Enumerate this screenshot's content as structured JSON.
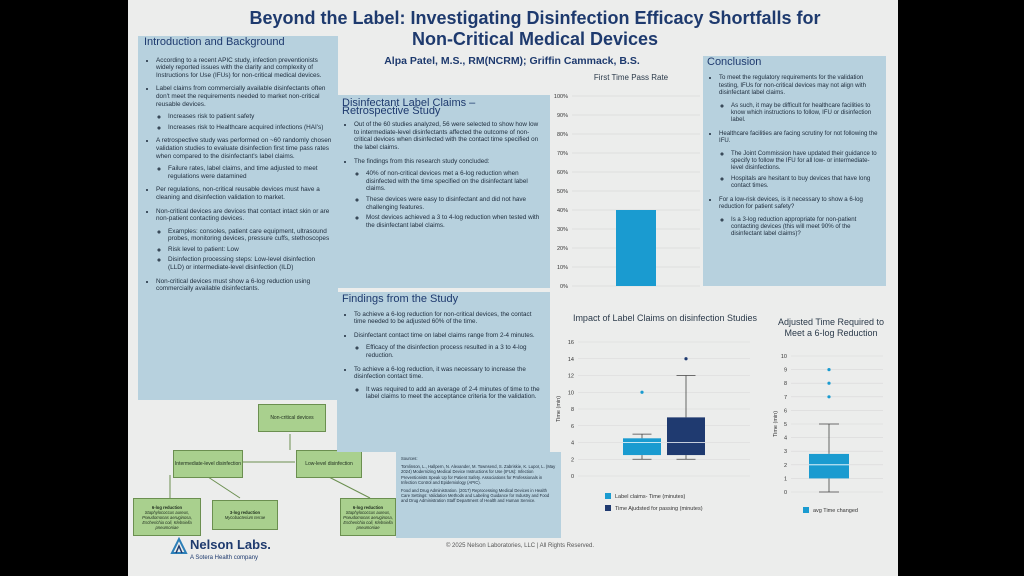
{
  "header": {
    "title_line1": "Beyond the Label: Investigating Disinfection Efficacy Shortfalls for",
    "title_line2": "Non-Critical Medical Devices",
    "authors": "Alpa Patel, M.S., RM(NCRM); Griffin Cammack, B.S."
  },
  "intro": {
    "heading": "Introduction and Background",
    "b1": "According to a recent APIC study, infection preventionists widely reported issues with the clarity and complexity of Instructions for Use (IFUs) for non-critical medical devices.",
    "b2": "Label claims from commercially available disinfectants often don't meet the requirements needed to market non-critical reusable devices.",
    "b2_s1": "Increases risk to patient safety",
    "b2_s2": "Increases risk to Healthcare acquired infections (HAI's)",
    "b3": "A retrospective study was performed on ~60 randomly chosen validation studies to evaluate disinfection first time pass rates when compared to the disinfectant's label claims.",
    "b3_s1": "Failure rates, label claims, and time adjusted to meet regulations were datamined",
    "b4": "Per regulations, non-critical reusable devices must have a cleaning and disinfection validation to market.",
    "b5": "Non-critical devices are devices that contact intact skin or are non-patient contacting devices.",
    "b5_s1": "Examples: consoles, patient care equipment, ultrasound probes, monitoring devices, pressure cuffs, stethoscopes",
    "b5_s2": "Risk level to patient: Low",
    "b5_s3": "Disinfection processing steps: Low-level disinfection (LLD) or intermediate-level disinfection (ILD)",
    "b6": "Non-critical devices must show a 6-log reduction using commercially available disinfectants."
  },
  "flow": {
    "noncritical": "Non-critical devices",
    "intermediate": "Intermediate-level disinfection",
    "low": "Low-level disinfection",
    "log6a_title": "6-log reduction",
    "log6a_body": "Staphylococcus aureus, Pseudomonas aeruginosa, Escherichia coli, Klebsiella pneumoniae",
    "log3_title": "3-log reduction",
    "log3_body": "Mycobacterium terrae",
    "log6b_title": "6-log reduction",
    "log6b_body": "Staphylococcus aureus, Pseudomonas aeruginosa, Escherichia coli, Klebsiella pneumoniae"
  },
  "disinfectant": {
    "heading1": "Disinfectant Label Claims –",
    "heading2": "Retrospective Study",
    "b1": "Out of the 60 studies analyzed, 56 were selected to show how low to intermediate-level disinfectants affected the outcome of non-critical devices when disinfected with the contact time specified on the label claims.",
    "b2": "The findings from this research study concluded:",
    "b2_s1": "40% of non-critical devices met a 6-log reduction when disinfected with the time specified on the disinfectant label claims.",
    "b2_s2": "These devices were easy to disinfectant and did not have challenging features.",
    "b2_s3": "Most devices achieved a 3 to 4-log reduction when tested with the disinfectant label claims."
  },
  "findings": {
    "heading": "Findings from the Study",
    "b1": "To achieve a 6-log reduction for non-critical devices, the contact time needed to be adjusted 60% of the time.",
    "b2": "Disinfectant contact time on label claims range from 2-4 minutes.",
    "b2_s1": "Efficacy of the disinfection process resulted in a 3 to 4-log reduction.",
    "b3": "To achieve a 6-log reduction, it was necessary to increase the disinfection contact time.",
    "b3_s1": "It was required to add an average of 2-4 minutes of time to the label claims to meet the acceptance criteria for the validation."
  },
  "conclusion": {
    "heading": "Conclusion",
    "b1": "To meet the regulatory requirements for the validation testing, IFUs for non-critical devices may not align with disinfectant label claims.",
    "b1_s1": "As such, it may be difficult for healthcare facilities to know which instructions to follow, IFU or disinfection label.",
    "b2": "Healthcare facilities are facing scrutiny for not following the IFU.",
    "b2_s1": "The Joint Commission have updated their guidance to specify to follow the IFU for all low- or intermediate-level disinfections.",
    "b2_s2": "Hospitals are hesitant to buy devices that have long contact times.",
    "b3": "For a low-risk devices, is it necessary to show a 6-log reduction for patient safety?",
    "b3_s1": "Is a 3-log reduction appropriate for non-patient contacting devices (this will meet 90% of the disinfectant label claims)?"
  },
  "sources": {
    "heading": "Sources:",
    "s1": "Tomlinson, L., Hallpern, N. Alexander, M. Townsend, S. Zabriskie, K. Lupor, L. (May 2024) Modernizing Medical Device Instructions for Use (IFUs): Infection Preventionists Speak Up for Patient Safety. Associations for Professionals in Infection Control and Epidemiology (APIC).",
    "s2": "Food and Drug Administration. (2017) Reprocessing Medical Devices in Health Care Settings: Validation Methods and Labeling Guidance for Industry and Food and Drug Administration Staff Department of Health and Human Service."
  },
  "footer": {
    "brand": "Nelson Labs.",
    "tagline": "A Sotera Health company",
    "copyright": "© 2025 Nelson Laboratories, LLC  |  All Rights Reserved."
  },
  "colors": {
    "navy": "#1e3a6e",
    "panel": "#b7d1de",
    "bar": "#1a9bd0",
    "dark_box": "#1f3a70",
    "green": "#a9d08e"
  },
  "chart_data": [
    {
      "type": "bar",
      "title": "First Time Pass Rate",
      "categories": [
        ""
      ],
      "values": [
        40
      ],
      "ylim": [
        0,
        100
      ],
      "yticks": [
        "0%",
        "10%",
        "20%",
        "30%",
        "40%",
        "50%",
        "60%",
        "70%",
        "80%",
        "90%",
        "100%"
      ]
    },
    {
      "type": "box",
      "title": "Impact of Label Claims on disinfection Studies",
      "ylabel": "Time (min)",
      "ylim": [
        0,
        16
      ],
      "yticks": [
        0,
        2,
        4,
        6,
        8,
        10,
        12,
        14,
        16
      ],
      "series": [
        {
          "name": "Label claims- Time (minutes)",
          "min": 2,
          "q1": 2.5,
          "median": 4,
          "q3": 4.5,
          "max": 5,
          "outliers": [
            10
          ]
        },
        {
          "name": "Time Ajudsted for passing (minutes)",
          "min": 2,
          "q1": 2.5,
          "median": 4,
          "q3": 7,
          "max": 12,
          "outliers": [
            14
          ]
        }
      ]
    },
    {
      "type": "box",
      "title": "Adjusted Time Required to Meet a 6-log Reduction",
      "ylabel": "Time (min)",
      "ylim": [
        0,
        10
      ],
      "yticks": [
        0,
        1,
        2,
        3,
        4,
        5,
        6,
        7,
        8,
        9,
        10
      ],
      "series": [
        {
          "name": "avg Time changed",
          "min": 0,
          "q1": 1,
          "median": 2,
          "q3": 2.8,
          "max": 5,
          "outliers": [
            7,
            8,
            9
          ]
        }
      ]
    }
  ]
}
